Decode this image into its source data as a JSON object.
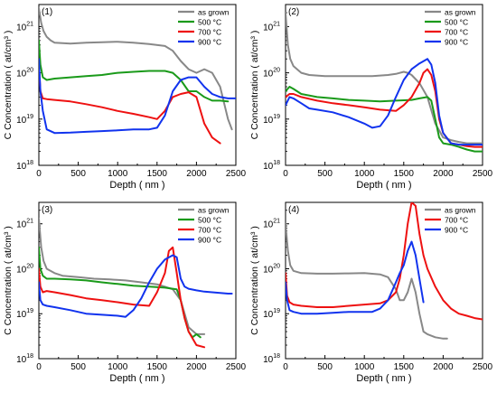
{
  "chart_data": [
    {
      "type": "line",
      "panel_label": "(1)",
      "xlabel": "Depth ( nm )",
      "ylabel": "C Concentration ( at/cm³ )",
      "xlim": [
        0,
        2500
      ],
      "ylim": [
        1e+18,
        3e+21
      ],
      "yscale": "log",
      "xticks": [
        "0",
        "500",
        "1000",
        "1500",
        "2000",
        "2500"
      ],
      "yticks": [
        {
          "base": "10",
          "exp": "18"
        },
        {
          "base": "10",
          "exp": "19"
        },
        {
          "base": "10",
          "exp": "20"
        },
        {
          "base": "10",
          "exp": "21"
        }
      ],
      "legend_position": "top-right",
      "series": [
        {
          "name": "as grown",
          "color": "#888888",
          "x": [
            0,
            30,
            60,
            100,
            150,
            200,
            300,
            400,
            600,
            800,
            1000,
            1200,
            1400,
            1600,
            1700,
            1800,
            1900,
            2000,
            2100,
            2200,
            2300,
            2400,
            2450
          ],
          "y": [
            2.5e+21,
            1.2e+21,
            8e+20,
            6e+20,
            5e+20,
            4.5e+20,
            4.4e+20,
            4.3e+20,
            4.5e+20,
            4.6e+20,
            4.7e+20,
            4.5e+20,
            4.2e+20,
            3.8e+20,
            3e+20,
            1.8e+20,
            1.2e+20,
            1e+20,
            1.2e+20,
            1e+20,
            5e+19,
            1e+19,
            6e+18
          ]
        },
        {
          "name": "500 °C",
          "color": "#1a9a1a",
          "x": [
            0,
            20,
            50,
            100,
            200,
            400,
            600,
            800,
            1000,
            1200,
            1400,
            1600,
            1700,
            1800,
            1900,
            2000,
            2100,
            2200,
            2300,
            2400
          ],
          "y": [
            5e+20,
            1.5e+20,
            8e+19,
            7e+19,
            7.5e+19,
            8e+19,
            8.5e+19,
            9e+19,
            1e+20,
            1.05e+20,
            1.1e+20,
            1.1e+20,
            1e+20,
            7e+19,
            4e+19,
            4e+19,
            3e+19,
            2.5e+19,
            2.5e+19,
            2.4e+19
          ]
        },
        {
          "name": "700 °C",
          "color": "#ee1111",
          "x": [
            0,
            20,
            50,
            100,
            200,
            400,
            600,
            800,
            1000,
            1200,
            1400,
            1500,
            1600,
            1700,
            1800,
            1900,
            2000,
            2100,
            2200,
            2300
          ],
          "y": [
            1.5e+20,
            4e+19,
            2.8e+19,
            2.7e+19,
            2.6e+19,
            2.4e+19,
            2.1e+19,
            1.8e+19,
            1.5e+19,
            1.3e+19,
            1.1e+19,
            1e+19,
            1.5e+19,
            3e+19,
            3.5e+19,
            3.8e+19,
            3e+19,
            8e+18,
            4e+18,
            3e+18
          ]
        },
        {
          "name": "900 °C",
          "color": "#1133ee",
          "x": [
            0,
            20,
            50,
            100,
            200,
            400,
            600,
            800,
            1000,
            1200,
            1400,
            1500,
            1600,
            1700,
            1800,
            1900,
            2000,
            2100,
            2200,
            2300,
            2400,
            2500
          ],
          "y": [
            2e+20,
            4e+19,
            1.5e+19,
            6e+18,
            5e+18,
            5.1e+18,
            5.3e+18,
            5.5e+18,
            5.7e+18,
            6e+18,
            6e+18,
            6.5e+18,
            1.2e+19,
            4e+19,
            7e+19,
            8e+19,
            8e+19,
            5e+19,
            3.5e+19,
            3e+19,
            2.8e+19,
            2.8e+19
          ]
        }
      ]
    },
    {
      "type": "line",
      "panel_label": "(2)",
      "xlabel": "Depth ( nm )",
      "ylabel": "C Concentration ( at/cm³ )",
      "xlim": [
        0,
        2500
      ],
      "ylim": [
        1e+18,
        3e+21
      ],
      "yscale": "log",
      "xticks": [
        "0",
        "500",
        "1000",
        "1500",
        "2000",
        "2500"
      ],
      "yticks": [
        {
          "base": "10",
          "exp": "18"
        },
        {
          "base": "10",
          "exp": "19"
        },
        {
          "base": "10",
          "exp": "20"
        },
        {
          "base": "10",
          "exp": "21"
        }
      ],
      "legend_position": "top-right",
      "series": [
        {
          "name": "as grown",
          "color": "#888888",
          "x": [
            0,
            30,
            60,
            100,
            200,
            300,
            500,
            700,
            900,
            1100,
            1300,
            1400,
            1500,
            1550,
            1600,
            1700,
            1800,
            1900,
            2000,
            2100,
            2200,
            2300,
            2400,
            2500
          ],
          "y": [
            2e+21,
            4e+20,
            2e+20,
            1.4e+20,
            1e+20,
            9e+19,
            8.5e+19,
            8.5e+19,
            8.5e+19,
            8.5e+19,
            9e+19,
            9.5e+19,
            1.05e+20,
            1e+20,
            9e+19,
            6e+19,
            3e+19,
            8e+18,
            4e+18,
            3.5e+18,
            3.2e+18,
            3e+18,
            3e+18,
            3e+18
          ]
        },
        {
          "name": "500 °C",
          "color": "#1a9a1a",
          "x": [
            0,
            50,
            100,
            200,
            400,
            600,
            800,
            1000,
            1200,
            1400,
            1600,
            1700,
            1800,
            1850,
            1900,
            1950,
            2000,
            2100,
            2200,
            2300,
            2400,
            2500
          ],
          "y": [
            4e+19,
            5e+19,
            4.5e+19,
            3.5e+19,
            3e+19,
            2.8e+19,
            2.6e+19,
            2.5e+19,
            2.4e+19,
            2.5e+19,
            2.6e+19,
            2.8e+19,
            3e+19,
            2.5e+19,
            1e+19,
            4e+18,
            3e+18,
            2.8e+18,
            2.5e+18,
            2.2e+18,
            2e+18,
            2e+18
          ]
        },
        {
          "name": "700 °C",
          "color": "#ee1111",
          "x": [
            0,
            50,
            100,
            200,
            400,
            600,
            800,
            1000,
            1200,
            1400,
            1500,
            1600,
            1700,
            1750,
            1800,
            1850,
            1900,
            1950,
            2000,
            2100,
            2200,
            2300,
            2400,
            2500
          ],
          "y": [
            3e+19,
            3.5e+19,
            3.5e+19,
            3e+19,
            2.5e+19,
            2.2e+19,
            2e+19,
            1.8e+19,
            1.6e+19,
            1.5e+19,
            2e+19,
            3e+19,
            6e+19,
            1e+20,
            1.2e+20,
            9e+19,
            4e+19,
            1e+19,
            5e+18,
            3e+18,
            2.8e+18,
            2.6e+18,
            2.5e+18,
            2.5e+18
          ]
        },
        {
          "name": "900 °C",
          "color": "#1133ee",
          "x": [
            0,
            50,
            100,
            200,
            300,
            400,
            600,
            800,
            1000,
            1100,
            1200,
            1300,
            1400,
            1500,
            1600,
            1700,
            1800,
            1850,
            1900,
            1950,
            2000,
            2100,
            2200,
            2300,
            2400,
            2500
          ],
          "y": [
            2e+19,
            3e+19,
            2.8e+19,
            2.2e+19,
            1.7e+19,
            1.6e+19,
            1.4e+19,
            1.1e+19,
            8e+18,
            6.5e+18,
            7e+18,
            1.2e+19,
            3e+19,
            7e+19,
            1.2e+20,
            1.6e+20,
            2e+20,
            1.5e+20,
            6e+19,
            1.2e+19,
            5e+18,
            3e+18,
            2.8e+18,
            2.8e+18,
            2.8e+18,
            2.8e+18
          ]
        }
      ]
    },
    {
      "type": "line",
      "panel_label": "(3)",
      "xlabel": "Depth ( nm )",
      "ylabel": "C Concentration ( at/cm³ )",
      "xlim": [
        0,
        2500
      ],
      "ylim": [
        1e+18,
        3e+21
      ],
      "yscale": "log",
      "xticks": [
        "0",
        "500",
        "1000",
        "1500",
        "2000",
        "2500"
      ],
      "yticks": [
        {
          "base": "10",
          "exp": "18"
        },
        {
          "base": "10",
          "exp": "19"
        },
        {
          "base": "10",
          "exp": "20"
        },
        {
          "base": "10",
          "exp": "21"
        }
      ],
      "legend_position": "top-right",
      "series": [
        {
          "name": "as grown",
          "color": "#888888",
          "x": [
            0,
            30,
            60,
            100,
            200,
            300,
            500,
            700,
            900,
            1100,
            1300,
            1500,
            1600,
            1700,
            1800,
            1850,
            1900,
            2000,
            2100
          ],
          "y": [
            1.3e+21,
            3e+20,
            1.5e+20,
            1e+20,
            8e+19,
            7e+19,
            6.5e+19,
            6e+19,
            5.8e+19,
            5.5e+19,
            5e+19,
            4.5e+19,
            4e+19,
            3.5e+19,
            2e+19,
            1e+19,
            5e+18,
            3.5e+18,
            3.5e+18
          ]
        },
        {
          "name": "500 °C",
          "color": "#1a9a1a",
          "x": [
            0,
            20,
            50,
            100,
            200,
            400,
            600,
            800,
            1000,
            1200,
            1400,
            1600,
            1700,
            1750,
            1800,
            1850,
            1900,
            1950,
            2000,
            2050
          ],
          "y": [
            3e+20,
            1e+20,
            7e+19,
            6e+19,
            6e+19,
            5.8e+19,
            5.5e+19,
            5e+19,
            4.6e+19,
            4.2e+19,
            4e+19,
            3.8e+19,
            3.6e+19,
            3.5e+19,
            2e+19,
            8e+18,
            4e+18,
            3e+18,
            3.5e+18,
            3e+18
          ]
        },
        {
          "name": "700 °C",
          "color": "#ee1111",
          "x": [
            0,
            20,
            50,
            100,
            200,
            400,
            600,
            800,
            1000,
            1200,
            1400,
            1500,
            1600,
            1650,
            1700,
            1750,
            1800,
            1850,
            1900,
            2000,
            2100
          ],
          "y": [
            1e+20,
            4e+19,
            3e+19,
            3.2e+19,
            3e+19,
            2.6e+19,
            2.2e+19,
            2e+19,
            1.8e+19,
            1.6e+19,
            1.5e+19,
            3e+19,
            8e+19,
            2.5e+20,
            3e+20,
            8e+19,
            2e+19,
            8e+18,
            4e+18,
            2e+18,
            1.8e+18
          ]
        },
        {
          "name": "900 °C",
          "color": "#1133ee",
          "x": [
            0,
            20,
            50,
            100,
            200,
            400,
            600,
            800,
            1000,
            1100,
            1200,
            1300,
            1400,
            1500,
            1600,
            1700,
            1750,
            1800,
            1850,
            1900,
            2000,
            2100,
            2200,
            2300,
            2400,
            2450
          ],
          "y": [
            5e+19,
            2e+19,
            1.6e+19,
            1.5e+19,
            1.4e+19,
            1.2e+19,
            1e+19,
            9.5e+18,
            9e+18,
            8.5e+18,
            1.2e+19,
            2.2e+19,
            5e+19,
            1e+20,
            1.6e+20,
            2e+20,
            1.8e+20,
            6e+19,
            4e+19,
            3.6e+19,
            3.3e+19,
            3.1e+19,
            3e+19,
            2.9e+19,
            2.8e+19,
            2.8e+19
          ]
        }
      ]
    },
    {
      "type": "line",
      "panel_label": "(4)",
      "xlabel": "Depth ( nm )",
      "ylabel": "C Concentration ( at/cm³ )",
      "xlim": [
        0,
        2500
      ],
      "ylim": [
        1e+18,
        3e+21
      ],
      "yscale": "log",
      "xticks": [
        "0",
        "500",
        "1000",
        "1500",
        "2000",
        "2500"
      ],
      "yticks": [
        {
          "base": "10",
          "exp": "18"
        },
        {
          "base": "10",
          "exp": "19"
        },
        {
          "base": "10",
          "exp": "20"
        },
        {
          "base": "10",
          "exp": "21"
        }
      ],
      "legend_position": "top-right",
      "series": [
        {
          "name": "as grown",
          "color": "#888888",
          "x": [
            0,
            30,
            60,
            100,
            200,
            400,
            600,
            800,
            1000,
            1200,
            1300,
            1400,
            1450,
            1500,
            1550,
            1600,
            1650,
            1700,
            1750,
            1800,
            1900,
            2000,
            2050
          ],
          "y": [
            1e+21,
            2.5e+20,
            1.2e+20,
            9e+19,
            8e+19,
            7.8e+19,
            7.8e+19,
            7.9e+19,
            8e+19,
            7.5e+19,
            6.5e+19,
            3.5e+19,
            2e+19,
            2e+19,
            3e+19,
            6e+19,
            3e+19,
            1e+19,
            4e+18,
            3.5e+18,
            3e+18,
            2.8e+18,
            2.8e+18
          ]
        },
        {
          "name": "700 °C",
          "color": "#ee1111",
          "x": [
            0,
            20,
            50,
            100,
            200,
            400,
            600,
            800,
            1000,
            1200,
            1300,
            1400,
            1450,
            1500,
            1550,
            1600,
            1650,
            1700,
            1750,
            1800,
            1900,
            2000,
            2100,
            2200,
            2300,
            2400,
            2500
          ],
          "y": [
            8e+19,
            2.5e+19,
            1.8e+19,
            1.6e+19,
            1.5e+19,
            1.4e+19,
            1.4e+19,
            1.5e+19,
            1.6e+19,
            1.7e+19,
            2e+19,
            3e+19,
            6e+19,
            2e+20,
            1e+21,
            3e+21,
            2.5e+21,
            6e+20,
            2e+20,
            1e+20,
            4e+19,
            2e+19,
            1.3e+19,
            1e+19,
            9e+18,
            8e+18,
            7.5e+18
          ]
        },
        {
          "name": "900 °C",
          "color": "#1133ee",
          "x": [
            0,
            20,
            50,
            100,
            200,
            400,
            600,
            800,
            1000,
            1100,
            1200,
            1300,
            1400,
            1450,
            1500,
            1550,
            1600,
            1650,
            1700,
            1750
          ],
          "y": [
            5e+19,
            2e+19,
            1.2e+19,
            1.1e+19,
            1e+19,
            1e+19,
            1.05e+19,
            1.1e+19,
            1.1e+19,
            1.1e+19,
            1.3e+19,
            2e+19,
            5e+19,
            8e+19,
            1.2e+20,
            2.5e+20,
            4e+20,
            2e+20,
            6e+19,
            1.8e+19
          ]
        }
      ]
    }
  ]
}
